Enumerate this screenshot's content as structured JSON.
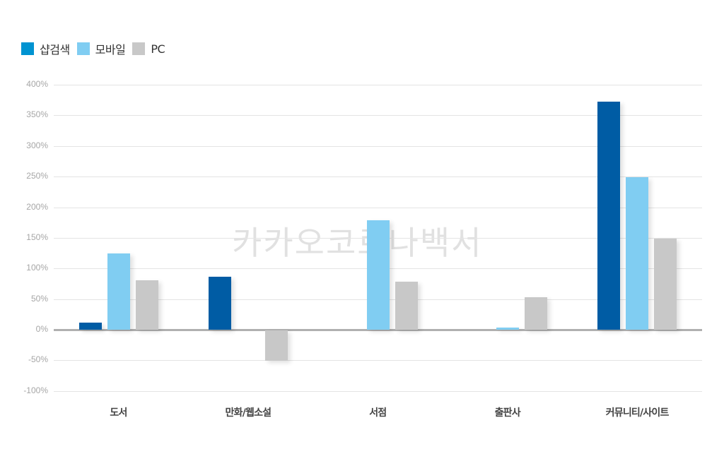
{
  "legend": [
    {
      "label": "샵검색",
      "color": "#0093D1"
    },
    {
      "label": "모바일",
      "color": "#80CDF2"
    },
    {
      "label": "PC",
      "color": "#C8C8C8"
    }
  ],
  "watermark": "카카오코로나백서",
  "chart_data": {
    "type": "bar",
    "title": "",
    "xlabel": "",
    "ylabel": "",
    "categories": [
      "도서",
      "만화/웹소설",
      "서점",
      "출판사",
      "커뮤니티/사이트"
    ],
    "series": [
      {
        "name": "샵검색",
        "color": "#005CA4",
        "values": [
          12,
          86,
          0,
          0,
          372
        ]
      },
      {
        "name": "모바일",
        "color": "#80CDF2",
        "values": [
          125,
          0,
          179,
          3,
          249
        ]
      },
      {
        "name": "PC",
        "color": "#C8C8C8",
        "values": [
          81,
          -50,
          78,
          53,
          149
        ]
      }
    ],
    "ylim": [
      -100,
      400
    ],
    "yticks": [
      "400%",
      "350%",
      "300%",
      "250%",
      "200%",
      "150%",
      "100%",
      "50%",
      "0%",
      "-50%",
      "-100%"
    ],
    "ytick_values": [
      400,
      350,
      300,
      250,
      200,
      150,
      100,
      50,
      0,
      -50,
      -100
    ],
    "grid": true,
    "legend_position": "top-left",
    "y_unit": "%"
  }
}
